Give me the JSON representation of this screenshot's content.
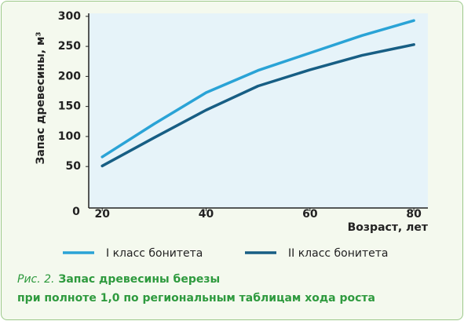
{
  "chart_data": {
    "type": "line",
    "title": "Запас древесины березы",
    "caption_prefix": "Рис. 2.",
    "subtitle": "при полноте 1,0 по региональным таблицам хода роста",
    "x_label": "Возраст, лет",
    "y_label": "Запас древесины, м³",
    "origin_label": "0",
    "x": [
      20,
      30,
      40,
      50,
      60,
      70,
      80
    ],
    "series": [
      {
        "name": "I класс бонитета",
        "color": "#2aa3d6",
        "values": [
          66,
          121,
          173,
          210,
          239,
          268,
          293
        ]
      },
      {
        "name": "II класс бонитета",
        "color": "#175e84",
        "values": [
          51,
          98,
          144,
          184,
          211,
          235,
          253
        ]
      }
    ],
    "xlim": [
      17.4,
      82.7
    ],
    "xticks": [
      20,
      40,
      60,
      80
    ],
    "ylim": [
      -19,
      305
    ],
    "yticks": [
      50,
      100,
      150,
      200,
      250,
      300
    ],
    "grid": false
  }
}
